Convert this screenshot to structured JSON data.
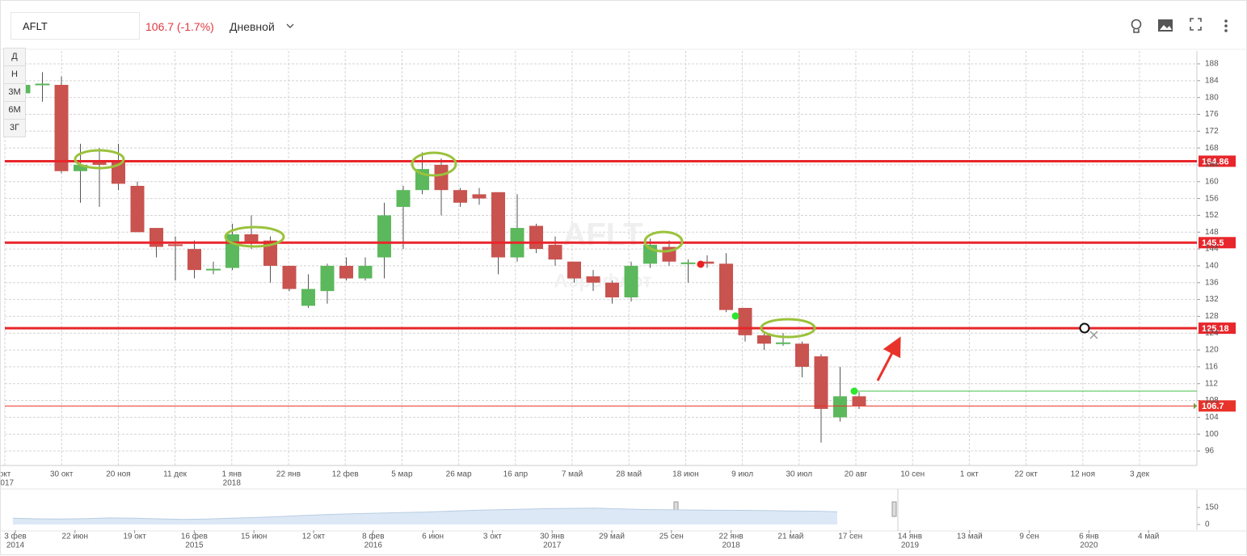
{
  "toolbar": {
    "ticker": "AFLT",
    "price": "106.7 (-1.7%)",
    "interval": "Дневной"
  },
  "periods": [
    "Д",
    "Н",
    "3М",
    "6М",
    "3Г"
  ],
  "chart_data": {
    "type": "candlestick",
    "watermark": [
      "AFLT",
      "Аэрофлот"
    ],
    "x_labels": [
      [
        "окт",
        "2017"
      ],
      [
        "30 окт"
      ],
      [
        "20 ноя"
      ],
      [
        "11 дек"
      ],
      [
        "1 янв",
        "2018"
      ],
      [
        "22 янв"
      ],
      [
        "12 фев"
      ],
      [
        "5 мар"
      ],
      [
        "26 мар"
      ],
      [
        "16 апр"
      ],
      [
        "7 май"
      ],
      [
        "28 май"
      ],
      [
        "18 июн"
      ],
      [
        "9 июл"
      ],
      [
        "30 июл"
      ],
      [
        "20 авг"
      ],
      [
        "10 сен"
      ],
      [
        "1 окт"
      ],
      [
        "22 окт"
      ],
      [
        "12 ноя"
      ],
      [
        "3 дек"
      ]
    ],
    "open": [
      181,
      183,
      183,
      162.5,
      165,
      165,
      159,
      149,
      145,
      144,
      139,
      139.5,
      147.5,
      146,
      140,
      130.5,
      134,
      140,
      137,
      142,
      154,
      158,
      164,
      158,
      157,
      157.5,
      142,
      149.5,
      145,
      141,
      137.5,
      136,
      132.5,
      140.5,
      144.5,
      140.5,
      141,
      140.5,
      130,
      123.5,
      121.5,
      121.5,
      118.5,
      104,
      109
    ],
    "high": [
      183.5,
      186,
      185,
      169,
      168,
      169,
      160,
      149,
      147,
      146,
      141,
      150,
      152,
      147,
      140,
      138,
      140.5,
      142,
      142,
      155,
      159,
      167,
      165.5,
      158.5,
      158.5,
      157.5,
      157,
      150,
      147,
      141,
      139,
      136.5,
      141,
      146.5,
      146,
      141.5,
      142.5,
      143,
      130,
      124,
      124,
      122,
      119,
      116,
      110
    ],
    "low": [
      181,
      179,
      162,
      155,
      154,
      158,
      148,
      142,
      136.5,
      137,
      138,
      139,
      144,
      136,
      134,
      130,
      131,
      136.5,
      136.5,
      137,
      144,
      157,
      152,
      154,
      154.5,
      138,
      141,
      143,
      140,
      136,
      134,
      131,
      131.5,
      139.5,
      140,
      136,
      139.5,
      129,
      122,
      120,
      121,
      113.5,
      98,
      103,
      106
    ],
    "close": [
      183,
      183.2,
      162.5,
      164,
      164,
      159.5,
      148,
      144.5,
      144.8,
      139,
      139.2,
      147.5,
      145.5,
      140,
      134.5,
      134.5,
      140,
      137,
      140,
      152,
      158,
      163,
      158,
      155,
      156,
      142,
      149,
      144,
      141.5,
      137,
      136,
      132.5,
      140,
      145,
      141,
      140.7,
      140.5,
      129.5,
      123.5,
      121.5,
      121.7,
      116,
      106,
      109,
      106.7
    ],
    "up_color": "#5cb85c",
    "down_color": "#c9534f",
    "ylim": [
      92.55,
      191.07
    ],
    "yticks": [
      96,
      100,
      104,
      108,
      112,
      116,
      120,
      124,
      128,
      132,
      136,
      140,
      144,
      148,
      152,
      156,
      160,
      164,
      168,
      172,
      176,
      180,
      184,
      188
    ],
    "grid": true,
    "levels": [
      {
        "value": 164.86,
        "color": "#e8262b"
      },
      {
        "value": 145.5,
        "color": "#e8262b"
      },
      {
        "value": 125.18,
        "color": "#e8262b"
      }
    ],
    "last_price": {
      "value": 106.7,
      "color": "#e8332a"
    },
    "navigator": {
      "type": "area",
      "color": "#dce8f5",
      "x_labels": [
        [
          "3 фев",
          "2014"
        ],
        [
          "22 июн"
        ],
        [
          "19 окт"
        ],
        [
          "16 фев",
          "2015"
        ],
        [
          "15 июн"
        ],
        [
          "12 окт"
        ],
        [
          "8 фев",
          "2016"
        ],
        [
          "6 июн"
        ],
        [
          "3 окт"
        ],
        [
          "30 янв",
          "2017"
        ],
        [
          "29 май"
        ],
        [
          "25 сен"
        ],
        [
          "22 янв",
          "2018"
        ],
        [
          "21 май"
        ],
        [
          "17 сен"
        ],
        [
          "14 янв",
          "2019"
        ],
        [
          "13 май"
        ],
        [
          "9 сен"
        ],
        [
          "6 янв",
          "2020"
        ],
        [
          "4 май"
        ]
      ],
      "values": [
        55,
        50,
        48,
        52,
        58,
        55,
        50,
        45,
        48,
        55,
        62,
        70,
        80,
        88,
        95,
        100,
        105,
        110,
        118,
        125,
        130,
        135,
        140,
        142,
        145,
        138,
        132,
        130,
        128,
        126,
        125,
        123,
        120,
        118,
        112
      ],
      "ylim": [
        -50,
        307
      ],
      "yticks": [
        0,
        150
      ]
    }
  }
}
